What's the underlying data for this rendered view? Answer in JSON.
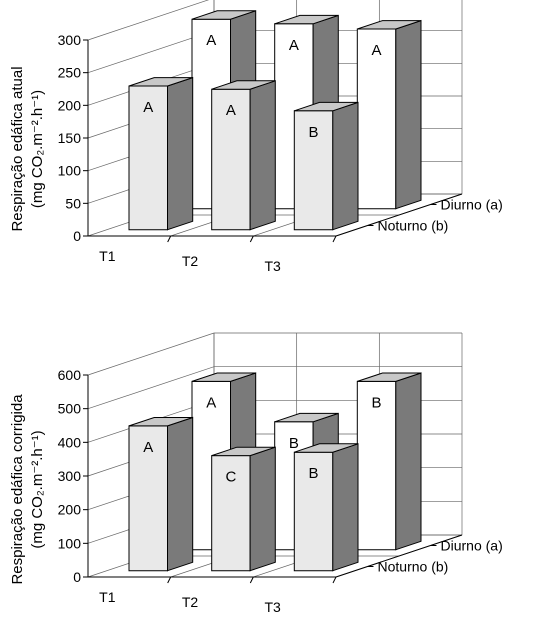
{
  "chart_data": [
    {
      "type": "bar",
      "categories": [
        "T1",
        "T2",
        "T3"
      ],
      "series": [
        {
          "name": "Diurno (a)",
          "values": [
            290,
            283,
            275
          ],
          "labels": [
            "A",
            "A",
            "A"
          ]
        },
        {
          "name": "Noturno (b)",
          "values": [
            220,
            215,
            182
          ],
          "labels": [
            "A",
            "A",
            "B"
          ]
        }
      ],
      "yticks": [
        "0",
        "50",
        "100",
        "150",
        "200",
        "250",
        "300"
      ],
      "ylim": [
        0,
        300
      ],
      "ylabel_line1": "Respiração edáfica atual",
      "ylabel_line2": "(mg CO₂.m⁻².h⁻¹)",
      "grid": true,
      "legend": "right"
    },
    {
      "type": "bar",
      "categories": [
        "T1",
        "T2",
        "T3"
      ],
      "series": [
        {
          "name": "Diurno (a)",
          "values": [
            500,
            380,
            500
          ],
          "labels": [
            "A",
            "B",
            "B"
          ]
        },
        {
          "name": "Noturno (b)",
          "values": [
            430,
            342,
            352
          ],
          "labels": [
            "A",
            "C",
            "B"
          ]
        }
      ],
      "yticks": [
        "0",
        "100",
        "200",
        "300",
        "400",
        "500",
        "600"
      ],
      "ylim": [
        0,
        600
      ],
      "ylabel_line1": "Respiração edáfica corrigida",
      "ylabel_line2": "(mg CO₂.m⁻².h⁻¹)",
      "grid": true,
      "legend": "right"
    }
  ]
}
